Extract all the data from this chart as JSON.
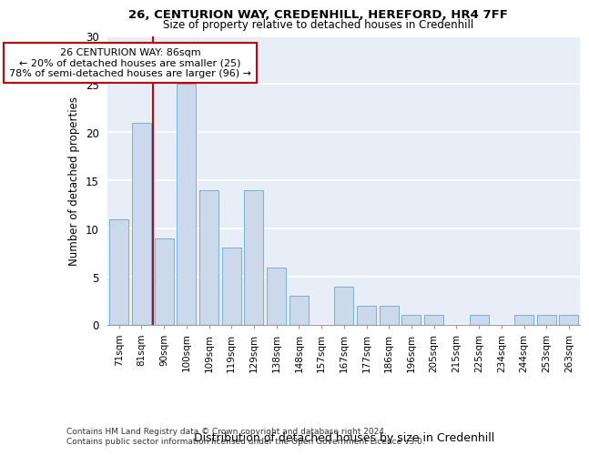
{
  "title1": "26, CENTURION WAY, CREDENHILL, HEREFORD, HR4 7FF",
  "title2": "Size of property relative to detached houses in Credenhill",
  "xlabel": "Distribution of detached houses by size in Credenhill",
  "ylabel": "Number of detached properties",
  "categories": [
    "71sqm",
    "81sqm",
    "90sqm",
    "100sqm",
    "109sqm",
    "119sqm",
    "129sqm",
    "138sqm",
    "148sqm",
    "157sqm",
    "167sqm",
    "177sqm",
    "186sqm",
    "196sqm",
    "205sqm",
    "215sqm",
    "225sqm",
    "234sqm",
    "244sqm",
    "253sqm",
    "263sqm"
  ],
  "values": [
    11,
    21,
    9,
    25,
    14,
    8,
    14,
    6,
    3,
    0,
    4,
    2,
    2,
    1,
    1,
    0,
    1,
    0,
    1,
    1,
    1
  ],
  "bar_color": "#ccd9eb",
  "bar_edge_color": "#7aafd4",
  "bar_width": 0.85,
  "vline_x": 1.5,
  "vline_color": "#cc0000",
  "annotation_text": "26 CENTURION WAY: 86sqm\n← 20% of detached houses are smaller (25)\n78% of semi-detached houses are larger (96) →",
  "annotation_box_color": "white",
  "annotation_box_edge": "#cc0000",
  "ylim": [
    0,
    30
  ],
  "yticks": [
    0,
    5,
    10,
    15,
    20,
    25,
    30
  ],
  "bg_color": "#e8eef8",
  "grid_color": "white",
  "footer1": "Contains HM Land Registry data © Crown copyright and database right 2024.",
  "footer2": "Contains public sector information licensed under the Open Government Licence v3.0."
}
